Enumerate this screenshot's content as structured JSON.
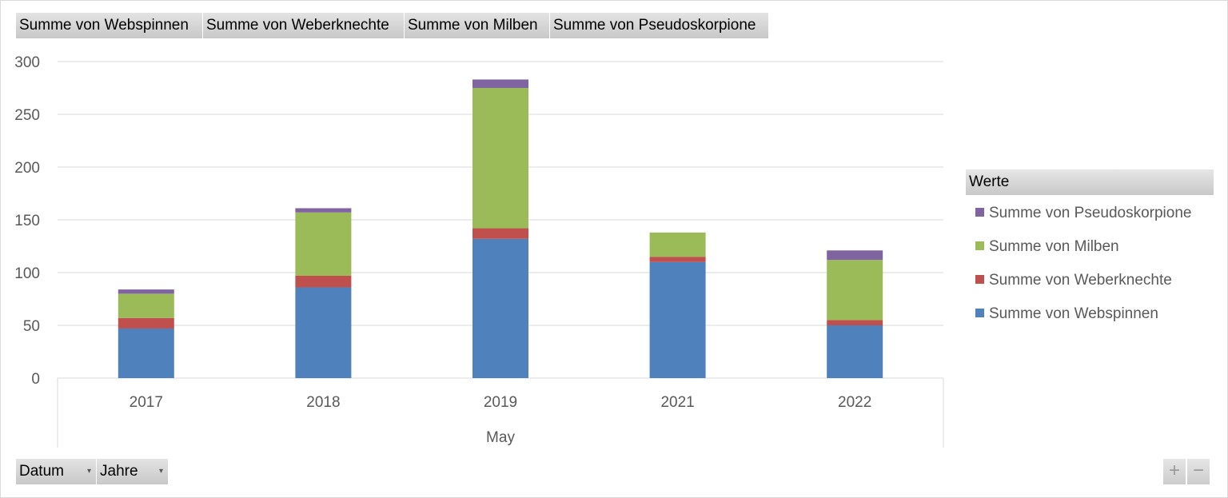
{
  "value_fields": [
    "Summe von Webspinnen",
    "Summe von Weberknechte",
    "Summe von Milben",
    "Summe von Pseudoskorpione"
  ],
  "axis_fields": [
    "Datum",
    "Jahre"
  ],
  "legend_title": "Werte",
  "zoom": {
    "plus": "+",
    "minus": "−"
  },
  "chart_data": {
    "type": "bar",
    "stacked": true,
    "categories": [
      "2017",
      "2018",
      "2019",
      "2021",
      "2022"
    ],
    "xlabel": "May",
    "ylabel": "",
    "title": "",
    "ylim": [
      0,
      300
    ],
    "yticks": [
      0,
      50,
      100,
      150,
      200,
      250,
      300
    ],
    "grid": true,
    "legend_position": "right",
    "series": [
      {
        "name": "Summe von Webspinnen",
        "color": "#4f81bd",
        "values": [
          47,
          86,
          132,
          110,
          50
        ]
      },
      {
        "name": "Summe von Weberknechte",
        "color": "#c0504d",
        "values": [
          10,
          11,
          10,
          5,
          5
        ]
      },
      {
        "name": "Summe von Milben",
        "color": "#9bbb59",
        "values": [
          23,
          60,
          133,
          23,
          57
        ]
      },
      {
        "name": "Summe von Pseudoskorpione",
        "color": "#8064a2",
        "values": [
          4,
          4,
          8,
          0,
          9
        ]
      }
    ]
  }
}
